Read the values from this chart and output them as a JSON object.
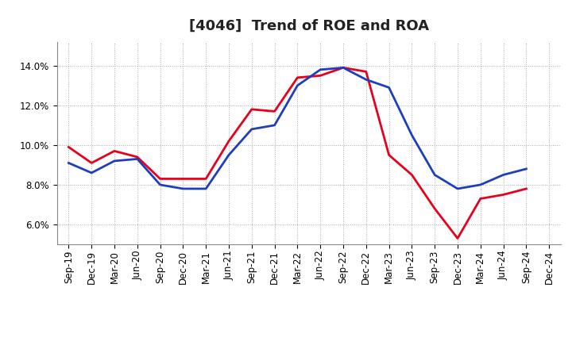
{
  "title": "[4046]  Trend of ROE and ROA",
  "x_labels": [
    "Sep-19",
    "Dec-19",
    "Mar-20",
    "Jun-20",
    "Sep-20",
    "Dec-20",
    "Mar-21",
    "Jun-21",
    "Sep-21",
    "Dec-21",
    "Mar-22",
    "Jun-22",
    "Sep-22",
    "Dec-22",
    "Mar-23",
    "Jun-23",
    "Sep-23",
    "Dec-23",
    "Mar-24",
    "Jun-24",
    "Sep-24",
    "Dec-24"
  ],
  "roe": [
    9.9,
    9.1,
    9.7,
    9.4,
    8.3,
    8.3,
    8.3,
    10.2,
    11.8,
    11.7,
    13.4,
    13.5,
    13.9,
    13.7,
    9.5,
    8.5,
    6.8,
    5.3,
    7.3,
    7.5,
    7.8,
    null
  ],
  "roa": [
    9.1,
    8.6,
    9.2,
    9.3,
    8.0,
    7.8,
    7.8,
    9.5,
    10.8,
    11.0,
    13.0,
    13.8,
    13.9,
    13.3,
    12.9,
    10.5,
    8.5,
    7.8,
    8.0,
    8.5,
    8.8,
    null
  ],
  "roe_color": "#e8001c",
  "roa_color": "#1e3fbd",
  "ylim": [
    5.0,
    15.2
  ],
  "yticks": [
    6.0,
    8.0,
    10.0,
    12.0,
    14.0
  ],
  "background_color": "#ffffff",
  "grid_color": "#aaaaaa",
  "title_fontsize": 13,
  "tick_fontsize": 8.5,
  "legend_fontsize": 10,
  "line_width": 2.0
}
